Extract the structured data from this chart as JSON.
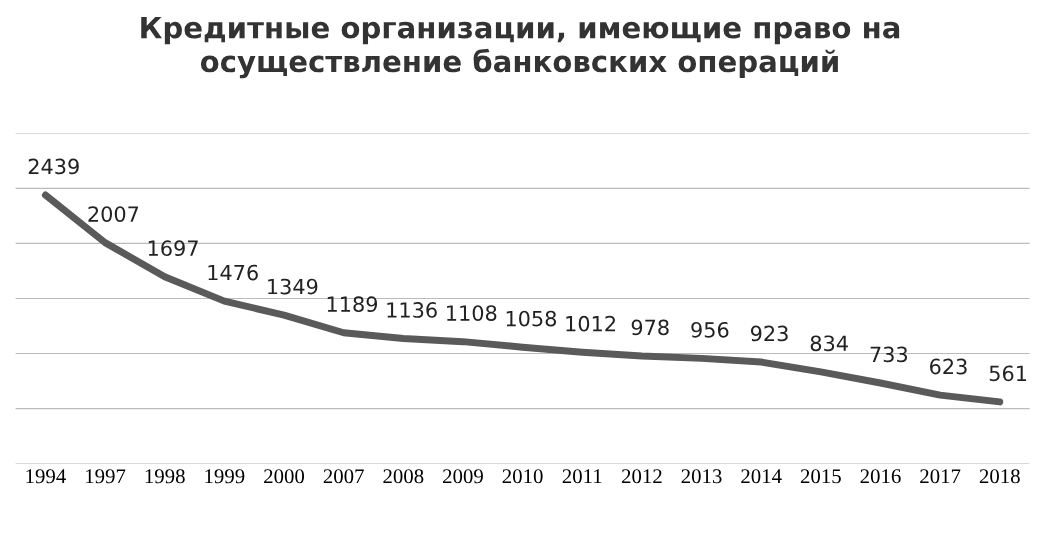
{
  "chart_data": {
    "type": "line",
    "title": "Кредитные организации, имеющие право на\nосуществление банковских операций",
    "categories": [
      "1994",
      "1997",
      "1998",
      "1999",
      "2000",
      "2007",
      "2008",
      "2009",
      "2010",
      "2011",
      "2012",
      "2013",
      "2014",
      "2015",
      "2016",
      "2017",
      "2018"
    ],
    "series": [
      {
        "color": "#5a5a5a",
        "values": [
          2439,
          2007,
          1697,
          1476,
          1349,
          1189,
          1136,
          1108,
          1058,
          1012,
          978,
          956,
          923,
          834,
          733,
          623,
          561
        ]
      }
    ],
    "ylim": [
      0,
      3000
    ],
    "yticks": [
      {
        "value": 0,
        "label": null
      },
      {
        "value": 500,
        "label": null
      },
      {
        "value": 1000,
        "label": null
      },
      {
        "value": 1500,
        "label": null
      },
      {
        "value": 2000,
        "label": null
      },
      {
        "value": 2500,
        "label": null
      },
      {
        "value": 3000,
        "label": null
      }
    ],
    "grid": "y",
    "tick_labels": "x",
    "data_labels": true,
    "marker": "none",
    "line_style": "solid",
    "legend": false
  }
}
